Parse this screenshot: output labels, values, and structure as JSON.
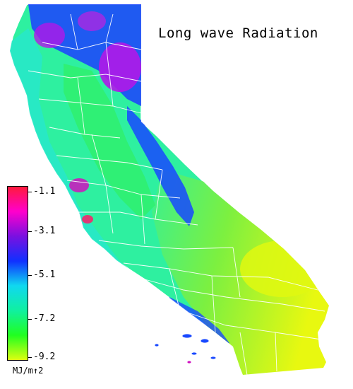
{
  "title": "Long wave Radiation",
  "legend": {
    "ticks": [
      "-1.1",
      "-3.1",
      "-5.1",
      "-7.2",
      "-9.2"
    ],
    "units": "MJ/m↑2",
    "colors": [
      "#ff1a3c",
      "#ff00cc",
      "#7a10e0",
      "#1030ff",
      "#10d8f0",
      "#10f0a0",
      "#20ff20",
      "#dcff10"
    ]
  },
  "map": {
    "region": "California",
    "colors": {
      "state_fill": "#2ef0a0",
      "desert_fill": "#a8f020",
      "southeast_fill": "#e0f810",
      "coast_fill": "#28e8c8",
      "mountain_fill": "#1c40ff",
      "peak_fill": "#b018e8",
      "county_lines": "#ffffff"
    }
  }
}
